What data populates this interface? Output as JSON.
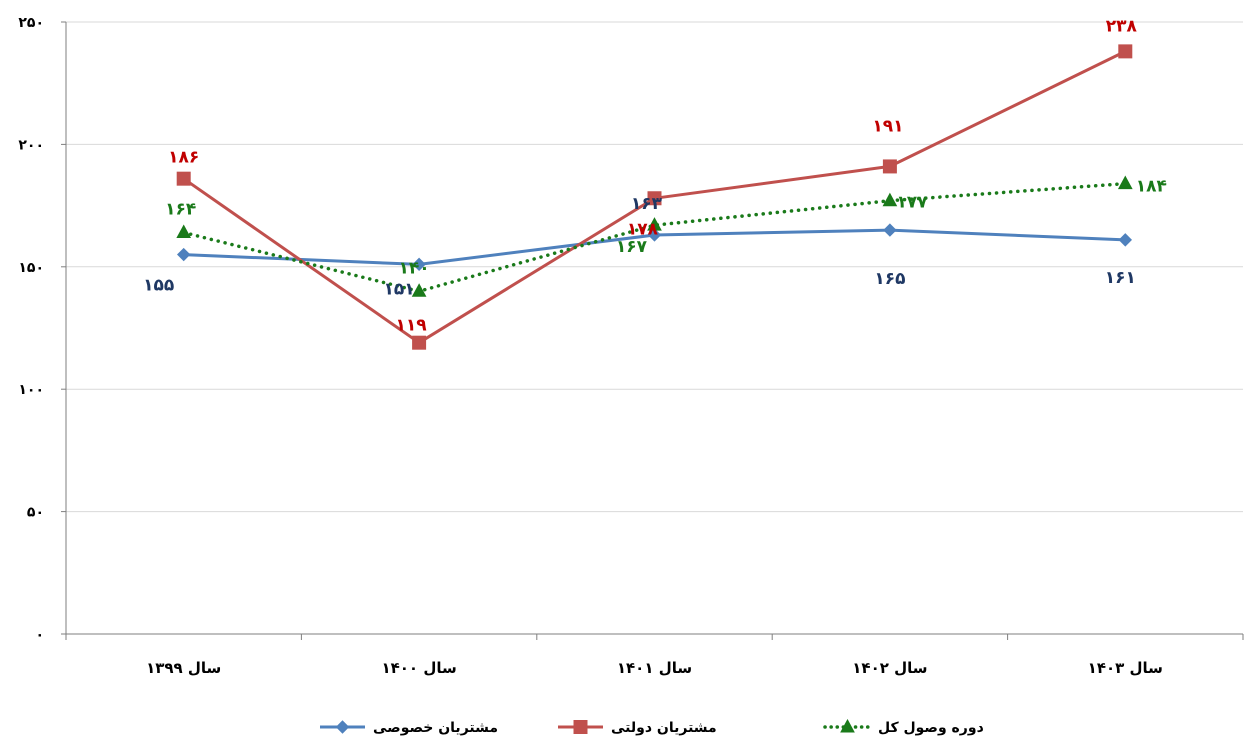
{
  "chart_data": {
    "type": "line",
    "categories": [
      "سال ۱۳۹۹",
      "سال ۱۴۰۰",
      "سال ۱۴۰۱",
      "سال ۱۴۰۲",
      "سال ۱۴۰۳"
    ],
    "ylim": [
      0,
      250
    ],
    "yticks": [
      0,
      50,
      100,
      150,
      200,
      250
    ],
    "ytick_labels": [
      "۰",
      "۵۰",
      "۱۰۰",
      "۱۵۰",
      "۲۰۰",
      "۲۵۰"
    ],
    "grid": true,
    "legend_position": "bottom",
    "series": [
      {
        "name": "مشتریان خصوصی",
        "values": [
          155,
          151,
          163,
          165,
          161
        ],
        "labels": [
          "۱۵۵",
          "۱۵۱",
          "۱۶۳",
          "۱۶۵",
          "۱۶۱"
        ],
        "color": "#4F81BD",
        "marker": "diamond",
        "style": "solid"
      },
      {
        "name": "مشتریان دولتی",
        "values": [
          186,
          119,
          178,
          191,
          238
        ],
        "labels": [
          "۱۸۶",
          "۱۱۹",
          "۱۷۸",
          "۱۹۱",
          "۲۳۸"
        ],
        "color": "#C0504D",
        "marker": "square",
        "style": "solid"
      },
      {
        "name": "دوره وصول کل",
        "values": [
          164,
          140,
          167,
          177,
          184
        ],
        "labels": [
          "۱۶۴",
          "۱۴۰",
          "۱۶۷",
          "۱۷۷",
          "۱۸۴"
        ],
        "color": "#1A7A1A",
        "marker": "triangle",
        "style": "dotted"
      }
    ]
  }
}
